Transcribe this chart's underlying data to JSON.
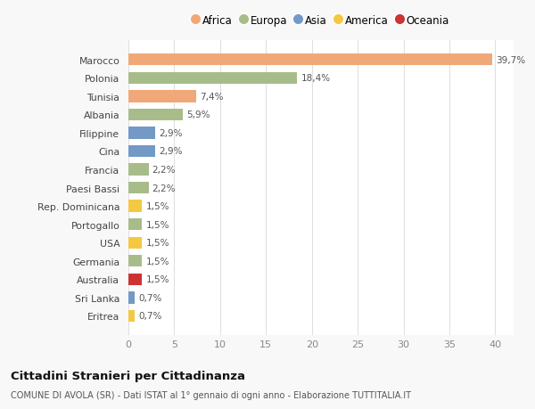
{
  "countries": [
    "Eritrea",
    "Sri Lanka",
    "Australia",
    "Germania",
    "USA",
    "Portogallo",
    "Rep. Dominicana",
    "Paesi Bassi",
    "Francia",
    "Cina",
    "Filippine",
    "Albania",
    "Tunisia",
    "Polonia",
    "Marocco"
  ],
  "values": [
    0.7,
    0.7,
    1.5,
    1.5,
    1.5,
    1.5,
    1.5,
    2.2,
    2.2,
    2.9,
    2.9,
    5.9,
    7.4,
    18.4,
    39.7
  ],
  "colors": [
    "#f5c842",
    "#7399c6",
    "#cc3333",
    "#a8bc8a",
    "#f5c842",
    "#a8bc8a",
    "#f5c842",
    "#a8bc8a",
    "#a8bc8a",
    "#7399c6",
    "#7399c6",
    "#a8bc8a",
    "#f0a878",
    "#a8bc8a",
    "#f0a878"
  ],
  "label_texts": [
    "0,7%",
    "0,7%",
    "1,5%",
    "1,5%",
    "1,5%",
    "1,5%",
    "1,5%",
    "2,2%",
    "2,2%",
    "2,9%",
    "2,9%",
    "5,9%",
    "7,4%",
    "18,4%",
    "39,7%"
  ],
  "legend_labels": [
    "Africa",
    "Europa",
    "Asia",
    "America",
    "Oceania"
  ],
  "legend_colors": [
    "#f0a878",
    "#a8bc8a",
    "#7399c6",
    "#f5c842",
    "#cc3333"
  ],
  "title": "Cittadini Stranieri per Cittadinanza",
  "subtitle": "COMUNE DI AVOLA (SR) - Dati ISTAT al 1° gennaio di ogni anno - Elaborazione TUTTITALIA.IT",
  "xlim": [
    0,
    42
  ],
  "xticks": [
    0,
    5,
    10,
    15,
    20,
    25,
    30,
    35,
    40
  ],
  "background_color": "#f8f8f8",
  "bar_background": "#ffffff"
}
